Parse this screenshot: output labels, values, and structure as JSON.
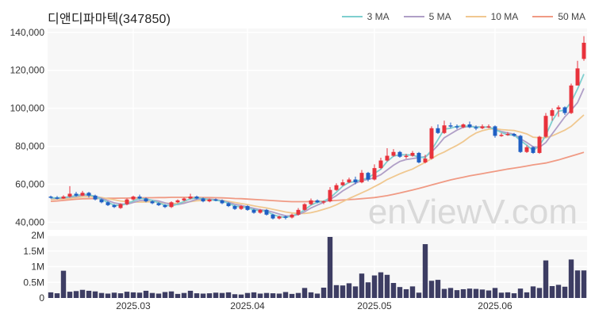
{
  "title": "디앤디파마텍(347850)",
  "watermark": "enViewV.com",
  "legend": [
    {
      "label": "3 MA",
      "color": "#7fcfcf"
    },
    {
      "label": "5 MA",
      "color": "#b09fc7"
    },
    {
      "label": "10 MA",
      "color": "#f0c890"
    },
    {
      "label": "50 MA",
      "color": "#f09a84"
    }
  ],
  "chart_data": [
    {
      "type": "candlestick",
      "ylim": [
        36000,
        142000
      ],
      "yticks": [
        40000,
        60000,
        80000,
        100000,
        120000,
        140000
      ],
      "ytick_labels": [
        "40,000",
        "60,000",
        "80,000",
        "100,000",
        "120,000",
        "140,000"
      ],
      "xticks": [
        {
          "index": 13,
          "label": "2025.03"
        },
        {
          "index": 31,
          "label": "2025.04"
        },
        {
          "index": 51,
          "label": "2025.05"
        },
        {
          "index": 70,
          "label": "2025.06"
        }
      ],
      "colors": {
        "up": "#e8323c",
        "down": "#1f5fc4"
      },
      "candles": [
        [
          53500,
          53000,
          54000,
          52500
        ],
        [
          53000,
          52500,
          53800,
          52000
        ],
        [
          52500,
          53500,
          54200,
          52300
        ],
        [
          53500,
          55000,
          59000,
          53000
        ],
        [
          55000,
          54000,
          56000,
          53500
        ],
        [
          54000,
          55500,
          56500,
          53800
        ],
        [
          55500,
          54000,
          56000,
          53000
        ],
        [
          54000,
          52000,
          54500,
          51500
        ],
        [
          52000,
          50500,
          52500,
          50000
        ],
        [
          50500,
          49000,
          51000,
          48500
        ],
        [
          49000,
          48000,
          49500,
          47500
        ],
        [
          47500,
          49500,
          50000,
          47000
        ],
        [
          49500,
          52000,
          52500,
          49000
        ],
        [
          52000,
          53500,
          54000,
          51500
        ],
        [
          53500,
          52500,
          54500,
          52000
        ],
        [
          52500,
          51000,
          53000,
          50500
        ],
        [
          51000,
          50000,
          51500,
          49500
        ],
        [
          50000,
          49000,
          50500,
          48500
        ],
        [
          49000,
          48000,
          49500,
          47500
        ],
        [
          48000,
          50500,
          51000,
          47500
        ],
        [
          50500,
          51500,
          52000,
          50000
        ],
        [
          51500,
          52500,
          53000,
          51000
        ],
        [
          52500,
          53500,
          55000,
          52000
        ],
        [
          53500,
          52500,
          54000,
          52000
        ],
        [
          52500,
          51000,
          53000,
          50500
        ],
        [
          51000,
          52000,
          52500,
          50500
        ],
        [
          52000,
          51500,
          52500,
          51000
        ],
        [
          51500,
          50000,
          52000,
          49500
        ],
        [
          50000,
          48500,
          50500,
          48000
        ],
        [
          48500,
          47000,
          49000,
          46500
        ],
        [
          47000,
          48500,
          49000,
          46500
        ],
        [
          48500,
          46500,
          49000,
          46000
        ],
        [
          46500,
          45000,
          47000,
          44500
        ],
        [
          45000,
          46500,
          47000,
          44500
        ],
        [
          46500,
          44000,
          47000,
          43500
        ],
        [
          44000,
          42000,
          44500,
          41500
        ],
        [
          42000,
          43000,
          43500,
          41500
        ],
        [
          43000,
          42500,
          43500,
          41500
        ],
        [
          42500,
          44000,
          44500,
          42000
        ],
        [
          44000,
          46500,
          47500,
          43500
        ],
        [
          46500,
          49500,
          50000,
          46000
        ],
        [
          49500,
          51500,
          52500,
          49000
        ],
        [
          51500,
          50500,
          52000,
          50000
        ],
        [
          50500,
          51000,
          51500,
          49500
        ],
        [
          51000,
          57000,
          58500,
          50500
        ],
        [
          57000,
          59500,
          60500,
          56500
        ],
        [
          59500,
          61000,
          62500,
          59000
        ],
        [
          61000,
          62500,
          63500,
          60500
        ],
        [
          62500,
          61000,
          64000,
          60000
        ],
        [
          61000,
          66000,
          67500,
          60500
        ],
        [
          66000,
          62500,
          66500,
          61500
        ],
        [
          62500,
          68500,
          70500,
          62000
        ],
        [
          68500,
          72500,
          74000,
          68000
        ],
        [
          72500,
          75000,
          79000,
          72000
        ],
        [
          75000,
          77000,
          78500,
          74500
        ],
        [
          77000,
          74500,
          77500,
          74000
        ],
        [
          74500,
          75000,
          76000,
          73500
        ],
        [
          75000,
          76500,
          77500,
          74500
        ],
        [
          76500,
          71500,
          77000,
          71000
        ],
        [
          71500,
          73500,
          75500,
          71000
        ],
        [
          73500,
          89500,
          90500,
          73000
        ],
        [
          89500,
          87000,
          91500,
          86500
        ],
        [
          87000,
          91000,
          93500,
          86500
        ],
        [
          91000,
          90500,
          92500,
          89500
        ],
        [
          90500,
          90000,
          91500,
          89000
        ],
        [
          90000,
          91500,
          92000,
          89500
        ],
        [
          91500,
          90000,
          93000,
          89500
        ],
        [
          90000,
          89500,
          91000,
          88500
        ],
        [
          89500,
          90500,
          91500,
          89000
        ],
        [
          90500,
          90500,
          91500,
          89500
        ],
        [
          90500,
          85500,
          91000,
          84500
        ],
        [
          85500,
          86000,
          87000,
          85000
        ],
        [
          86000,
          86500,
          87500,
          85500
        ],
        [
          86500,
          85500,
          87000,
          85000
        ],
        [
          85500,
          77000,
          86000,
          76500
        ],
        [
          77000,
          79500,
          80500,
          76500
        ],
        [
          79500,
          76500,
          80000,
          76000
        ],
        [
          76500,
          85000,
          85500,
          76000
        ],
        [
          85000,
          96000,
          97500,
          84500
        ],
        [
          96000,
          99000,
          100000,
          93500
        ],
        [
          99500,
          100500,
          101500,
          95500
        ],
        [
          100500,
          97500,
          101000,
          96500
        ],
        [
          97500,
          112000,
          113000,
          97000
        ],
        [
          112000,
          121000,
          125000,
          117000
        ],
        [
          126000,
          134500,
          138000,
          125000
        ]
      ],
      "ma3": [
        52800,
        52800,
        53000,
        53500,
        54000,
        54800,
        54500,
        53500,
        52000,
        50500,
        49000,
        48800,
        49800,
        51200,
        52500,
        52300,
        51500,
        50200,
        49000,
        48500,
        49500,
        51000,
        52300,
        52800,
        52400,
        51900,
        51500,
        51200,
        50000,
        48500,
        48000,
        47500,
        46600,
        46000,
        45800,
        44000,
        43000,
        42500,
        43300,
        44500,
        46500,
        49000,
        50500,
        51000,
        52800,
        55800,
        59000,
        61000,
        61400,
        62500,
        63200,
        65700,
        67900,
        72000,
        74800,
        75500,
        75500,
        75300,
        74300,
        74000,
        78000,
        83500,
        89000,
        89500,
        90500,
        90600,
        90500,
        90000,
        90100,
        90200,
        88800,
        87300,
        86000,
        86000,
        83000,
        80600,
        77700,
        80300,
        85800,
        93300,
        98500,
        99000,
        103300,
        110200,
        118000
      ],
      "ma5": [
        52500,
        52600,
        52800,
        53200,
        53600,
        54200,
        54300,
        53700,
        52600,
        51400,
        50200,
        49600,
        49500,
        50400,
        51400,
        51600,
        51600,
        51200,
        50200,
        49300,
        49300,
        50000,
        51000,
        52100,
        52300,
        52100,
        51900,
        51300,
        50500,
        49500,
        48800,
        48100,
        47300,
        46600,
        46200,
        45300,
        44300,
        43400,
        43300,
        44000,
        45500,
        47500,
        49000,
        50500,
        52000,
        54000,
        56500,
        58500,
        60500,
        62000,
        62500,
        63500,
        65000,
        67500,
        70000,
        72000,
        73000,
        73500,
        74000,
        74500,
        77000,
        80500,
        84500,
        86500,
        88500,
        90000,
        90500,
        90300,
        90100,
        90100,
        88800,
        87800,
        87000,
        86400,
        84000,
        82000,
        79700,
        79500,
        82000,
        86500,
        91000,
        95500,
        99000,
        103000,
        110500
      ],
      "ma10": [
        52000,
        52100,
        52300,
        52600,
        53000,
        53300,
        53500,
        53400,
        53000,
        52400,
        51800,
        51200,
        50800,
        50600,
        50600,
        50700,
        50800,
        50600,
        50100,
        49800,
        49900,
        50300,
        50800,
        51300,
        51500,
        51700,
        51800,
        51500,
        51000,
        50400,
        49800,
        49300,
        48600,
        48000,
        47500,
        46800,
        46100,
        45400,
        44900,
        44600,
        44600,
        45000,
        45800,
        46800,
        47800,
        49200,
        50800,
        52500,
        54000,
        55500,
        57000,
        58800,
        60500,
        62500,
        64000,
        65500,
        66800,
        68000,
        69800,
        71500,
        73500,
        75500,
        77000,
        78800,
        80500,
        82500,
        85000,
        87000,
        88200,
        89000,
        89200,
        88800,
        88500,
        88300,
        87500,
        86500,
        84800,
        84500,
        84500,
        85500,
        87000,
        88500,
        90500,
        93500,
        96500
      ],
      "ma50": [
        51000,
        51200,
        51500,
        51800,
        52100,
        52300,
        52400,
        52500,
        52500,
        52600,
        52600,
        52700,
        52700,
        52800,
        52800,
        52900,
        52900,
        53000,
        53000,
        53100,
        53100,
        53100,
        53100,
        53100,
        53000,
        53000,
        52900,
        52800,
        52700,
        52500,
        52400,
        52200,
        52000,
        51800,
        51600,
        51400,
        51200,
        51000,
        50800,
        50800,
        50800,
        50900,
        51000,
        51100,
        51300,
        51500,
        51700,
        51900,
        52100,
        52400,
        52700,
        53000,
        53500,
        54000,
        54700,
        55400,
        56200,
        57000,
        57800,
        58700,
        59600,
        60500,
        61400,
        62300,
        63000,
        63700,
        64400,
        65000,
        65600,
        66200,
        66800,
        67400,
        68000,
        68500,
        69000,
        69600,
        70200,
        70700,
        71200,
        72000,
        72800,
        73800,
        74800,
        75800,
        76800
      ],
      "volume_ylim": [
        0,
        2000000
      ],
      "volume_ticks": [
        0,
        500000,
        1000000,
        1500000,
        2000000
      ],
      "volume_tick_labels": [
        "0",
        "0.5M",
        "1M",
        "1.5M",
        "2M"
      ],
      "volume": [
        180000,
        150000,
        870000,
        200000,
        220000,
        260000,
        230000,
        210000,
        160000,
        140000,
        170000,
        150000,
        200000,
        180000,
        170000,
        230000,
        160000,
        140000,
        190000,
        210000,
        130000,
        160000,
        230000,
        150000,
        140000,
        150000,
        170000,
        160000,
        180000,
        120000,
        110000,
        160000,
        180000,
        140000,
        160000,
        150000,
        140000,
        190000,
        130000,
        160000,
        320000,
        180000,
        140000,
        330000,
        1950000,
        410000,
        400000,
        470000,
        370000,
        780000,
        500000,
        720000,
        820000,
        740000,
        480000,
        350000,
        280000,
        370000,
        170000,
        1720000,
        550000,
        580000,
        290000,
        320000,
        250000,
        280000,
        300000,
        290000,
        270000,
        240000,
        320000,
        170000,
        180000,
        150000,
        300000,
        180000,
        370000,
        320000,
        1200000,
        380000,
        420000,
        360000,
        1230000,
        880000,
        880000
      ]
    }
  ]
}
